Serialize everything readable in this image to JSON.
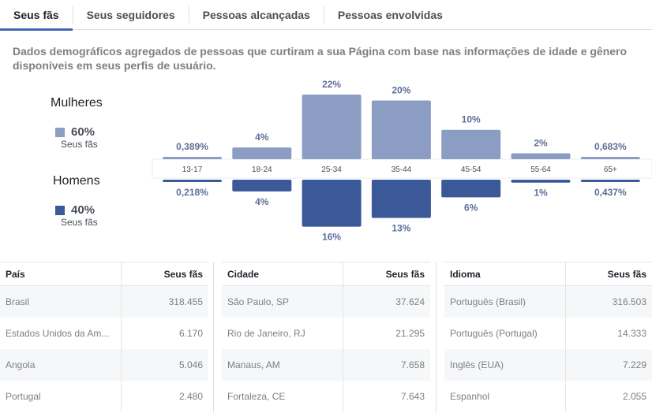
{
  "tabs": [
    {
      "label": "Seus fãs",
      "active": true
    },
    {
      "label": "Seus seguidores",
      "active": false
    },
    {
      "label": "Pessoas alcançadas",
      "active": false
    },
    {
      "label": "Pessoas envolvidas",
      "active": false
    }
  ],
  "description": "Dados demográficos agregados de pessoas que curtiram a sua Página com base nas informações de idade e gênero disponíveis em seus perfis de usuário.",
  "legend": {
    "women": {
      "label": "Mulheres",
      "percent": "60%",
      "sub": "Seus fãs",
      "color": "#8b9dc3"
    },
    "men": {
      "label": "Homens",
      "percent": "40%",
      "sub": "Seus fãs",
      "color": "#3b5998"
    }
  },
  "chart_data": {
    "type": "bar",
    "categories": [
      "13-17",
      "18-24",
      "25-34",
      "35-44",
      "45-54",
      "55-64",
      "65+"
    ],
    "series": [
      {
        "name": "Mulheres",
        "values": [
          0.389,
          4,
          22,
          20,
          10,
          2,
          0.683
        ],
        "labels": [
          "0,389%",
          "4%",
          "22%",
          "20%",
          "10%",
          "2%",
          "0,683%"
        ],
        "color": "#8b9dc3"
      },
      {
        "name": "Homens",
        "values": [
          0.218,
          4,
          16,
          13,
          6,
          1,
          0.437
        ],
        "labels": [
          "0,218%",
          "4%",
          "16%",
          "13%",
          "6%",
          "1%",
          "0,437%"
        ],
        "color": "#3b5998"
      }
    ]
  },
  "tables": [
    {
      "headers": [
        "País",
        "Seus fãs"
      ],
      "rows": [
        [
          "Brasil",
          "318.455"
        ],
        [
          "Estados Unidos da Am...",
          "6.170"
        ],
        [
          "Angola",
          "5.046"
        ],
        [
          "Portugal",
          "2.480"
        ]
      ]
    },
    {
      "headers": [
        "Cidade",
        "Seus fãs"
      ],
      "rows": [
        [
          "São Paulo, SP",
          "37.624"
        ],
        [
          "Rio de Janeiro, RJ",
          "21.295"
        ],
        [
          "Manaus, AM",
          "7.658"
        ],
        [
          "Fortaleza, CE",
          "7.643"
        ]
      ]
    },
    {
      "headers": [
        "Idioma",
        "Seus fãs"
      ],
      "rows": [
        [
          "Português (Brasil)",
          "316.503"
        ],
        [
          "Português (Portugal)",
          "14.333"
        ],
        [
          "Inglês (EUA)",
          "7.229"
        ],
        [
          "Espanhol",
          "2.055"
        ]
      ]
    }
  ]
}
